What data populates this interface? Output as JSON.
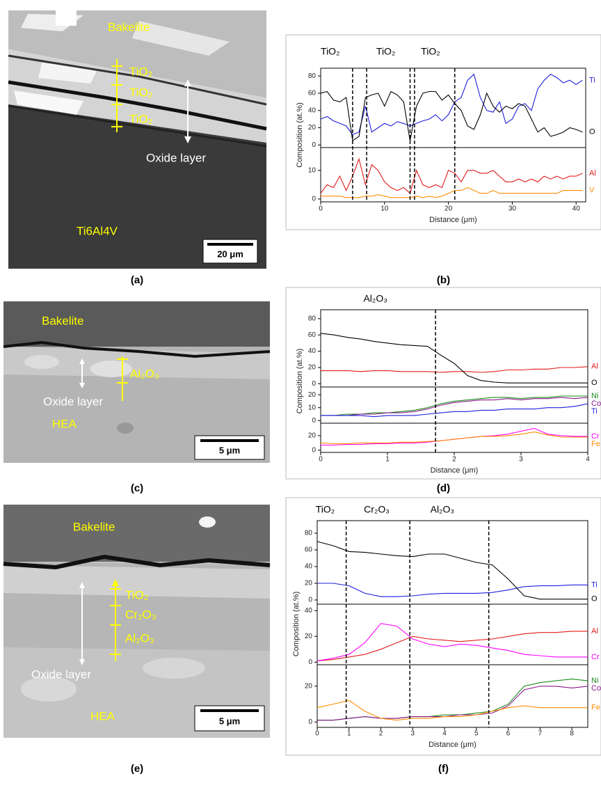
{
  "micrographs": [
    {
      "panel_label": "(a)",
      "bakelite": "Bakelite",
      "phases": [
        "TiO₂",
        "TiO₂",
        "TiO₂"
      ],
      "oxide": "Oxide layer",
      "substrate": "Ti6Al4V",
      "scale_bar": "20 μm"
    },
    {
      "panel_label": "(c)",
      "bakelite": "Bakelite",
      "phases": [
        "Al₂O₃"
      ],
      "oxide": "Oxide layer",
      "substrate": "HEA",
      "scale_bar": "5 μm"
    },
    {
      "panel_label": "(e)",
      "bakelite": "Bakelite",
      "phases": [
        "TiO₂",
        "Cr₂O₃",
        "Al₂O₃"
      ],
      "oxide": "Oxide layer",
      "substrate": "HEA",
      "scale_bar": "5 μm"
    }
  ],
  "chart_data": [
    {
      "type": "line",
      "panel_label": "(b)",
      "xlabel": "Distance (μm)",
      "ylabel": "Composition (at.%)",
      "x": [
        0,
        1,
        2,
        3,
        4,
        5,
        6,
        7,
        8,
        9,
        10,
        11,
        12,
        13,
        14,
        15,
        16,
        17,
        18,
        19,
        20,
        21,
        22,
        23,
        24,
        25,
        26,
        27,
        28,
        29,
        30,
        31,
        32,
        33,
        34,
        35,
        36,
        37,
        38,
        39,
        40,
        41
      ],
      "xlim": [
        0,
        41.5
      ],
      "xticks": [
        0,
        10,
        20,
        30,
        40
      ],
      "boundaries": [
        5.0,
        7.2,
        14.0,
        14.7,
        21.0
      ],
      "annotations": [
        {
          "text": "TiO₂",
          "x": 1.5
        },
        {
          "text": "TiO₂",
          "x": 10.2
        },
        {
          "text": "TiO₂",
          "x": 17.2
        }
      ],
      "subplots": [
        {
          "ylim": [
            -3,
            89
          ],
          "yticks": [
            0,
            20,
            40,
            60,
            80
          ],
          "series": [
            {
              "name": "Ti",
              "color": "#1f1fdd",
              "values": [
                30,
                33,
                28,
                25,
                22,
                12,
                15,
                45,
                15,
                20,
                25,
                22,
                27,
                25,
                22,
                25,
                28,
                30,
                35,
                28,
                35,
                50,
                55,
                75,
                82,
                55,
                40,
                38,
                50,
                25,
                30,
                45,
                48,
                40,
                65,
                75,
                82,
                78,
                72,
                75,
                70,
                75
              ]
            },
            {
              "name": "O",
              "color": "#000000",
              "values": [
                60,
                62,
                52,
                50,
                55,
                5,
                10,
                55,
                58,
                60,
                45,
                62,
                58,
                50,
                5,
                45,
                60,
                62,
                62,
                52,
                58,
                48,
                40,
                22,
                18,
                35,
                60,
                45,
                38,
                45,
                42,
                48,
                45,
                30,
                15,
                20,
                10,
                12,
                15,
                20,
                18,
                15
              ]
            }
          ]
        },
        {
          "ylim": [
            -1,
            18
          ],
          "yticks": [
            0,
            10
          ],
          "series": [
            {
              "name": "Al",
              "color": "#e21a1a",
              "values": [
                2,
                5,
                4,
                8,
                3,
                8,
                14,
                5,
                12,
                10,
                6,
                4,
                3,
                4,
                2,
                10,
                5,
                4,
                5,
                4,
                10,
                9,
                6,
                10,
                10,
                9,
                9,
                10,
                8,
                6,
                6,
                7,
                6,
                7,
                6,
                8,
                7,
                8,
                7,
                8,
                8,
                9
              ]
            },
            {
              "name": "V",
              "color": "#ff8c00",
              "values": [
                1,
                1,
                1,
                1,
                0.5,
                0.5,
                0.5,
                1,
                1,
                1.5,
                1,
                0.5,
                0.5,
                0.5,
                0.5,
                1,
                0.5,
                1,
                0.5,
                1,
                2,
                3,
                3,
                4,
                3,
                2,
                2,
                3,
                2,
                2,
                2,
                2,
                2,
                2,
                2,
                2,
                2,
                2,
                3,
                3,
                3,
                3
              ]
            }
          ]
        }
      ]
    },
    {
      "type": "line",
      "panel_label": "(d)",
      "xlabel": "Distance (μm)",
      "ylabel": "Composition (at.%)",
      "x": [
        0,
        0.2,
        0.4,
        0.6,
        0.8,
        1,
        1.2,
        1.4,
        1.6,
        1.8,
        2,
        2.2,
        2.4,
        2.6,
        2.8,
        3,
        3.2,
        3.4,
        3.6,
        3.8,
        4
      ],
      "xlim": [
        0,
        4
      ],
      "xticks": [
        0,
        1,
        2,
        3,
        4
      ],
      "boundaries": [
        1.72
      ],
      "annotations": [
        {
          "text": "Al₂O₃",
          "x": 0.82
        }
      ],
      "subplots": [
        {
          "ylim": [
            -4,
            91
          ],
          "yticks": [
            0,
            20,
            40,
            60,
            80
          ],
          "series": [
            {
              "name": "Al",
              "color": "#e21a1a",
              "values": [
                16,
                16,
                16,
                15,
                16,
                16,
                15,
                15,
                15,
                14,
                15,
                15,
                14,
                15,
                17,
                17,
                18,
                18,
                20,
                20,
                21
              ]
            },
            {
              "name": "O",
              "color": "#000000",
              "values": [
                62,
                60,
                57,
                55,
                52,
                50,
                48,
                47,
                46,
                35,
                25,
                10,
                4,
                2,
                1,
                1,
                1,
                1,
                1,
                1,
                1
              ]
            }
          ]
        },
        {
          "ylim": [
            -2,
            26
          ],
          "yticks": [
            0,
            10,
            20
          ],
          "series": [
            {
              "name": "Ni",
              "color": "#1a8a1a",
              "values": [
                4,
                4,
                5,
                5,
                6,
                6,
                7,
                8,
                10,
                13,
                15,
                16,
                17,
                18,
                18,
                17,
                18,
                18,
                19,
                19,
                19
              ]
            },
            {
              "name": "Co",
              "color": "#8b1a8b",
              "values": [
                4,
                4,
                4,
                5,
                5,
                6,
                6,
                7,
                9,
                12,
                14,
                15,
                16,
                16,
                17,
                16,
                17,
                17,
                18,
                17,
                18
              ]
            },
            {
              "name": "Ti",
              "color": "#1f1fdd",
              "values": [
                4,
                4,
                4,
                4,
                3,
                4,
                4,
                4,
                5,
                6,
                7,
                7,
                8,
                8,
                9,
                9,
                9,
                10,
                10,
                11,
                13
              ]
            }
          ]
        },
        {
          "ylim": [
            -3,
            37
          ],
          "yticks": [
            0,
            20
          ],
          "series": [
            {
              "name": "Cr",
              "color": "#ff00ff",
              "values": [
                7,
                7,
                8,
                8,
                9,
                9,
                10,
                10,
                11,
                13,
                15,
                17,
                19,
                20,
                22,
                26,
                30,
                22,
                20,
                19,
                19
              ]
            },
            {
              "name": "Fe",
              "color": "#ff8c00",
              "values": [
                10,
                9,
                9,
                10,
                10,
                10,
                11,
                11,
                12,
                13,
                15,
                17,
                19,
                19,
                20,
                22,
                25,
                21,
                18,
                18,
                18
              ]
            }
          ]
        }
      ]
    },
    {
      "type": "line",
      "panel_label": "(f)",
      "xlabel": "Distance (μm)",
      "ylabel": "Composition (at.%)",
      "x": [
        0,
        0.5,
        1,
        1.5,
        2,
        2.5,
        3,
        3.5,
        4,
        4.5,
        5,
        5.5,
        6,
        6.5,
        7,
        7.5,
        8,
        8.5
      ],
      "xlim": [
        0,
        8.5
      ],
      "xticks": [
        0,
        1,
        2,
        3,
        4,
        5,
        6,
        7,
        8
      ],
      "boundaries": [
        0.91,
        2.91,
        5.39
      ],
      "annotations": [
        {
          "text": "TiO₂",
          "x": 0.25
        },
        {
          "text": "Cr₂O₃",
          "x": 1.87
        },
        {
          "text": "Al₂O₃",
          "x": 3.93
        }
      ],
      "subplots": [
        {
          "ylim": [
            -5,
            95
          ],
          "yticks": [
            0,
            20,
            40,
            60,
            80
          ],
          "series": [
            {
              "name": "Ti",
              "color": "#1f1fdd",
              "values": [
                20,
                20,
                17,
                8,
                4,
                4,
                5,
                7,
                8,
                8,
                8,
                9,
                12,
                16,
                17,
                17,
                18,
                18
              ]
            },
            {
              "name": "O",
              "color": "#000000",
              "values": [
                70,
                65,
                58,
                57,
                55,
                53,
                52,
                55,
                55,
                50,
                45,
                42,
                25,
                5,
                1,
                1,
                1,
                1
              ]
            }
          ]
        },
        {
          "ylim": [
            -2,
            45
          ],
          "yticks": [
            0,
            20,
            40
          ],
          "series": [
            {
              "name": "Al",
              "color": "#e21a1a",
              "values": [
                1,
                2,
                4,
                6,
                10,
                15,
                20,
                18,
                17,
                16,
                17,
                18,
                20,
                22,
                23,
                23,
                24,
                24
              ]
            },
            {
              "name": "Cr",
              "color": "#ff00ff",
              "values": [
                1,
                3,
                6,
                15,
                30,
                28,
                18,
                14,
                12,
                14,
                13,
                11,
                9,
                6,
                5,
                4,
                4,
                4
              ]
            }
          ]
        },
        {
          "ylim": [
            -3,
            32
          ],
          "yticks": [
            0,
            20
          ],
          "series": [
            {
              "name": "Ni",
              "color": "#1a8a1a",
              "values": [
                1,
                1,
                2,
                3,
                2,
                2,
                3,
                3,
                4,
                4,
                5,
                6,
                10,
                20,
                22,
                23,
                24,
                23
              ]
            },
            {
              "name": "Co",
              "color": "#8b1a8b",
              "values": [
                1,
                1,
                2,
                3,
                2,
                2,
                3,
                3,
                3,
                4,
                4,
                5,
                9,
                18,
                20,
                20,
                19,
                20
              ]
            },
            {
              "name": "Fe",
              "color": "#ff8c00",
              "values": [
                8,
                10,
                12,
                6,
                2,
                1,
                2,
                2,
                3,
                3,
                4,
                6,
                8,
                9,
                8,
                8,
                8,
                8
              ]
            }
          ]
        }
      ]
    }
  ]
}
